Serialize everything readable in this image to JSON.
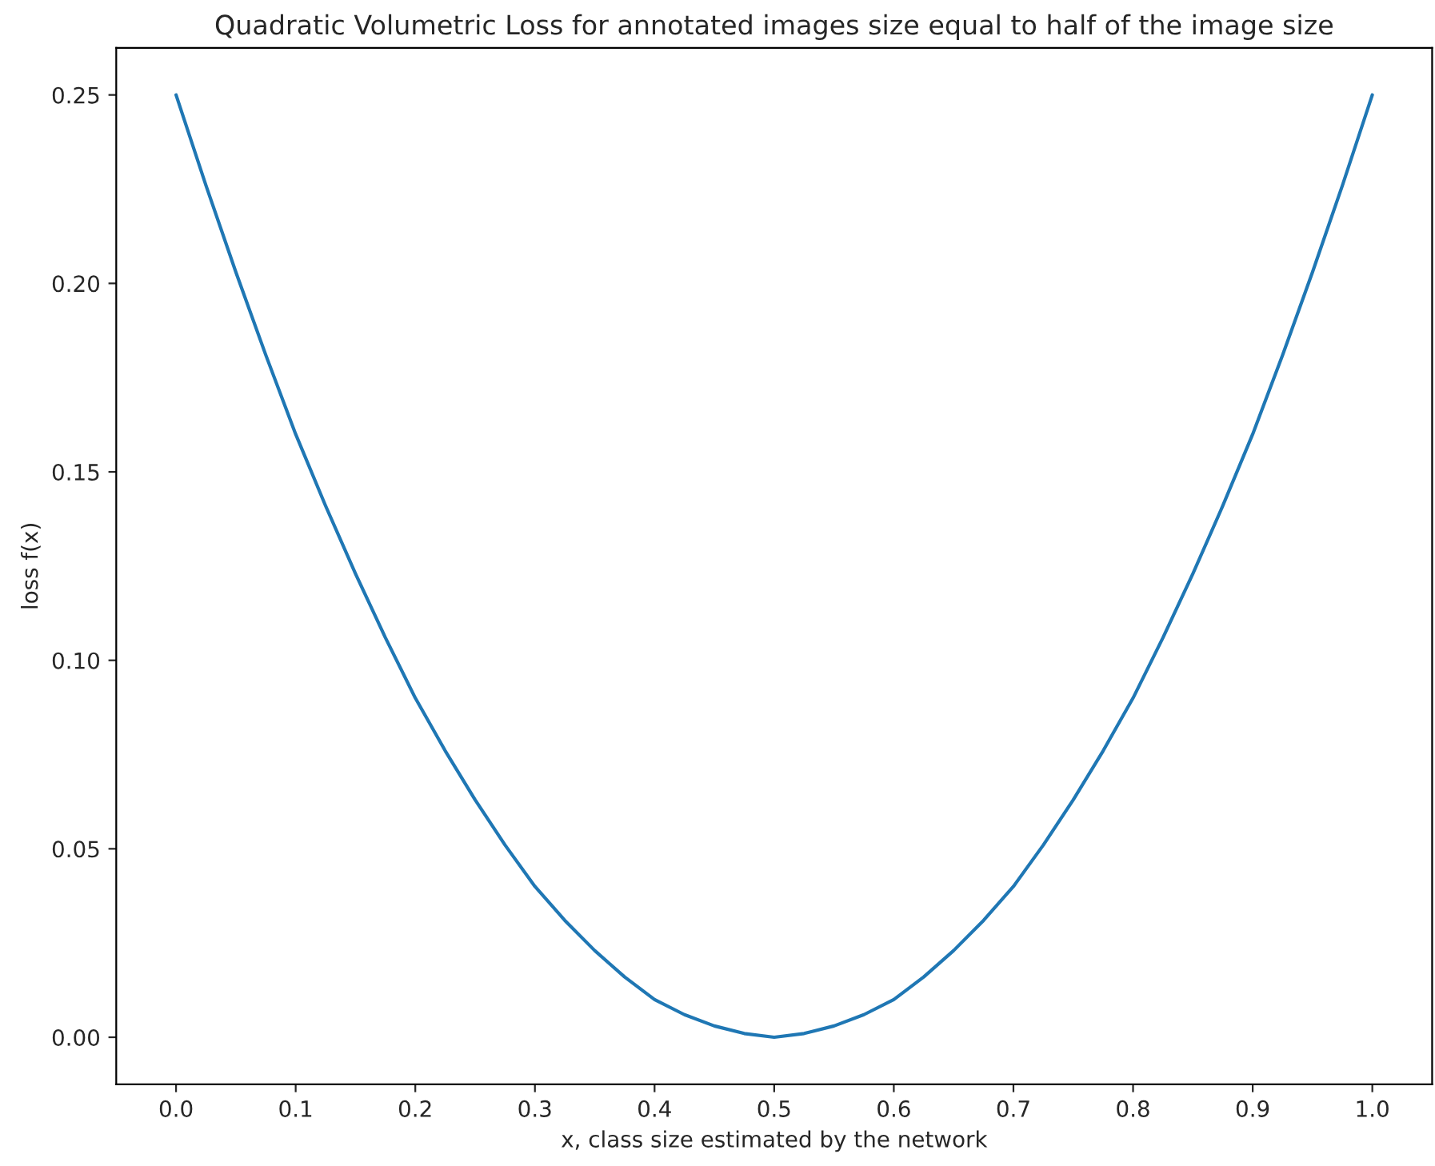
{
  "chart_data": {
    "type": "line",
    "title": "Quadratic Volumetric Loss for annotated images size equal to half of the image size",
    "xlabel": "x, class size estimated by the network",
    "ylabel": "loss f(x)",
    "x": [
      0,
      0.025,
      0.05,
      0.075,
      0.1,
      0.125,
      0.15,
      0.175,
      0.2,
      0.225,
      0.25,
      0.275,
      0.3,
      0.325,
      0.35,
      0.375,
      0.4,
      0.425,
      0.45,
      0.475,
      0.5,
      0.525,
      0.55,
      0.575,
      0.6,
      0.625,
      0.65,
      0.675,
      0.7,
      0.725,
      0.75,
      0.775,
      0.8,
      0.825,
      0.85,
      0.875,
      0.9,
      0.925,
      0.95,
      0.975,
      1.0
    ],
    "series": [
      {
        "color": "#1f77b4",
        "values": [
          0.25,
          0.226,
          0.203,
          0.181,
          0.16,
          0.141,
          0.123,
          0.106,
          0.09,
          0.076,
          0.063,
          0.051,
          0.04,
          0.031,
          0.023,
          0.016,
          0.01,
          0.006,
          0.003,
          0.001,
          0,
          0.001,
          0.003,
          0.006,
          0.01,
          0.016,
          0.023,
          0.031,
          0.04,
          0.051,
          0.063,
          0.076,
          0.09,
          0.106,
          0.123,
          0.141,
          0.16,
          0.181,
          0.203,
          0.226,
          0.25
        ]
      }
    ],
    "xlim": [
      -0.05,
      1.05
    ],
    "ylim": [
      -0.0125,
      0.2625
    ],
    "xticks": [
      {
        "value": 0,
        "label": "0.0"
      },
      0.1,
      0.2,
      0.3,
      0.4,
      0.5,
      0.6,
      0.7,
      0.8,
      0.9,
      {
        "value": 1,
        "label": "1.0"
      }
    ],
    "yticks": [
      {
        "value": 0,
        "label": "0.00"
      },
      0.05,
      {
        "value": 0.1,
        "label": "0.10"
      },
      0.15,
      {
        "value": 0.2,
        "label": "0.20"
      },
      0.25
    ],
    "grid": false,
    "marker": "none",
    "line_style": "solid"
  }
}
